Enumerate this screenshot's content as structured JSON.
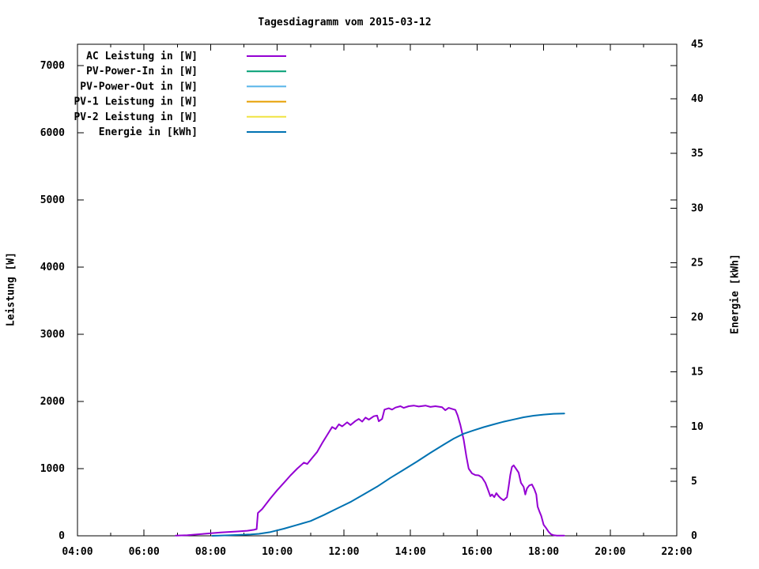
{
  "title": "Tagesdiagramm vom 2015-03-12",
  "chart_data": {
    "type": "line",
    "title": "Tagesdiagramm vom 2015-03-12",
    "grid": false,
    "legend_position": "top-left-inside",
    "x_axis": {
      "unit": "time",
      "range_hours": [
        4,
        22
      ],
      "major_tick_every_hours": 2,
      "minor_tick_every_hours": 1,
      "tick_labels": [
        "04:00",
        "06:00",
        "08:00",
        "10:00",
        "12:00",
        "14:00",
        "16:00",
        "18:00",
        "20:00",
        "22:00"
      ]
    },
    "y_axis_left": {
      "label": "Leistung [W]",
      "range": [
        0,
        7320
      ],
      "ticks": [
        0,
        1000,
        2000,
        3000,
        4000,
        5000,
        6000,
        7000
      ]
    },
    "y_axis_right": {
      "label": "Energie [kWh]",
      "range": [
        0,
        45
      ],
      "ticks": [
        0,
        5,
        10,
        15,
        20,
        25,
        30,
        35,
        40,
        45
      ]
    },
    "legend": [
      {
        "label": "AC Leistung in [W]",
        "color": "#9400d3"
      },
      {
        "label": "PV-Power-In in [W]",
        "color": "#009e73"
      },
      {
        "label": "PV-Power-Out in [W]",
        "color": "#56b4e9"
      },
      {
        "label": "PV-1 Leistung in [W]",
        "color": "#e69f00"
      },
      {
        "label": "PV-2 Leistung in [W]",
        "color": "#f0e442"
      },
      {
        "label": "Energie in [kWh]",
        "color": "#0072b2"
      }
    ],
    "series": [
      {
        "name": "AC Leistung in [W]",
        "axis": "left",
        "color": "#9400d3",
        "points": [
          [
            6.95,
            3
          ],
          [
            7.3,
            10
          ],
          [
            7.8,
            30
          ],
          [
            8.3,
            50
          ],
          [
            8.8,
            65
          ],
          [
            9.1,
            75
          ],
          [
            9.3,
            90
          ],
          [
            9.38,
            100
          ],
          [
            9.42,
            340
          ],
          [
            9.55,
            400
          ],
          [
            9.8,
            560
          ],
          [
            10.0,
            680
          ],
          [
            10.2,
            790
          ],
          [
            10.4,
            900
          ],
          [
            10.6,
            1000
          ],
          [
            10.8,
            1090
          ],
          [
            10.9,
            1070
          ],
          [
            11.05,
            1160
          ],
          [
            11.2,
            1250
          ],
          [
            11.35,
            1380
          ],
          [
            11.5,
            1500
          ],
          [
            11.65,
            1620
          ],
          [
            11.75,
            1590
          ],
          [
            11.85,
            1660
          ],
          [
            11.95,
            1630
          ],
          [
            12.1,
            1690
          ],
          [
            12.2,
            1650
          ],
          [
            12.35,
            1710
          ],
          [
            12.45,
            1740
          ],
          [
            12.55,
            1700
          ],
          [
            12.65,
            1760
          ],
          [
            12.75,
            1730
          ],
          [
            12.9,
            1780
          ],
          [
            13.0,
            1790
          ],
          [
            13.05,
            1705
          ],
          [
            13.15,
            1740
          ],
          [
            13.22,
            1880
          ],
          [
            13.35,
            1900
          ],
          [
            13.45,
            1880
          ],
          [
            13.55,
            1910
          ],
          [
            13.7,
            1930
          ],
          [
            13.8,
            1905
          ],
          [
            13.95,
            1930
          ],
          [
            14.1,
            1940
          ],
          [
            14.25,
            1925
          ],
          [
            14.45,
            1940
          ],
          [
            14.6,
            1920
          ],
          [
            14.75,
            1930
          ],
          [
            14.95,
            1915
          ],
          [
            15.05,
            1870
          ],
          [
            15.15,
            1905
          ],
          [
            15.25,
            1890
          ],
          [
            15.35,
            1875
          ],
          [
            15.42,
            1790
          ],
          [
            15.5,
            1650
          ],
          [
            15.6,
            1430
          ],
          [
            15.68,
            1180
          ],
          [
            15.75,
            1000
          ],
          [
            15.85,
            930
          ],
          [
            15.95,
            905
          ],
          [
            16.05,
            900
          ],
          [
            16.15,
            870
          ],
          [
            16.25,
            790
          ],
          [
            16.32,
            700
          ],
          [
            16.4,
            590
          ],
          [
            16.45,
            615
          ],
          [
            16.52,
            575
          ],
          [
            16.58,
            635
          ],
          [
            16.65,
            590
          ],
          [
            16.72,
            555
          ],
          [
            16.8,
            530
          ],
          [
            16.9,
            575
          ],
          [
            16.95,
            730
          ],
          [
            17.0,
            905
          ],
          [
            17.05,
            1025
          ],
          [
            17.1,
            1050
          ],
          [
            17.17,
            1000
          ],
          [
            17.25,
            940
          ],
          [
            17.32,
            790
          ],
          [
            17.4,
            730
          ],
          [
            17.45,
            615
          ],
          [
            17.5,
            705
          ],
          [
            17.57,
            750
          ],
          [
            17.65,
            765
          ],
          [
            17.72,
            695
          ],
          [
            17.78,
            615
          ],
          [
            17.82,
            435
          ],
          [
            17.88,
            355
          ],
          [
            17.93,
            295
          ],
          [
            18.0,
            165
          ],
          [
            18.07,
            120
          ],
          [
            18.15,
            60
          ],
          [
            18.22,
            25
          ],
          [
            18.3,
            8
          ],
          [
            18.4,
            3
          ],
          [
            18.62,
            3
          ]
        ]
      },
      {
        "name": "PV-Power-In in [W]",
        "axis": "left",
        "color": "#009e73",
        "points": []
      },
      {
        "name": "PV-Power-Out in [W]",
        "axis": "left",
        "color": "#56b4e9",
        "points": []
      },
      {
        "name": "PV-1 Leistung in [W]",
        "axis": "left",
        "color": "#e69f00",
        "points": []
      },
      {
        "name": "PV-2 Leistung in [W]",
        "axis": "left",
        "color": "#f0e442",
        "points": []
      },
      {
        "name": "Energie in [kWh]",
        "axis": "right",
        "color": "#0072b2",
        "points": [
          [
            8.05,
            0.0
          ],
          [
            8.6,
            0.06
          ],
          [
            9.2,
            0.12
          ],
          [
            9.45,
            0.18
          ],
          [
            9.8,
            0.35
          ],
          [
            10.2,
            0.65
          ],
          [
            10.6,
            1.0
          ],
          [
            11.0,
            1.35
          ],
          [
            11.4,
            1.9
          ],
          [
            11.8,
            2.5
          ],
          [
            12.2,
            3.1
          ],
          [
            12.6,
            3.8
          ],
          [
            13.0,
            4.5
          ],
          [
            13.4,
            5.3
          ],
          [
            13.8,
            6.05
          ],
          [
            14.2,
            6.8
          ],
          [
            14.6,
            7.6
          ],
          [
            15.0,
            8.35
          ],
          [
            15.3,
            8.9
          ],
          [
            15.6,
            9.35
          ],
          [
            15.9,
            9.65
          ],
          [
            16.2,
            9.95
          ],
          [
            16.5,
            10.2
          ],
          [
            16.8,
            10.45
          ],
          [
            17.1,
            10.65
          ],
          [
            17.4,
            10.85
          ],
          [
            17.7,
            11.0
          ],
          [
            18.0,
            11.1
          ],
          [
            18.3,
            11.17
          ],
          [
            18.62,
            11.2
          ]
        ]
      }
    ]
  }
}
